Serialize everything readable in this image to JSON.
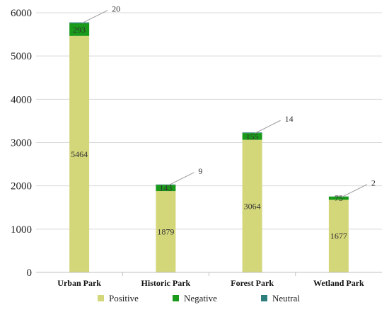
{
  "chart_data": {
    "type": "bar",
    "stacked": true,
    "categories": [
      "Urban Park",
      "Historic Park",
      "Forest Park",
      "Wetland Park"
    ],
    "series": [
      {
        "name": "Positive",
        "color": "#d4d67a",
        "values": [
          5464,
          1879,
          3064,
          1677
        ]
      },
      {
        "name": "Negative",
        "color": "#1a9a1a",
        "values": [
          293,
          143,
          155,
          75
        ]
      },
      {
        "name": "Neutral",
        "color": "#2e7d7d",
        "values": [
          20,
          9,
          14,
          2
        ]
      }
    ],
    "ylim": [
      0,
      6000
    ],
    "yticks": [
      0,
      1000,
      2000,
      3000,
      4000,
      5000,
      6000
    ],
    "grid": true,
    "legend": "bottom",
    "title": "",
    "xlabel": "",
    "ylabel": ""
  }
}
